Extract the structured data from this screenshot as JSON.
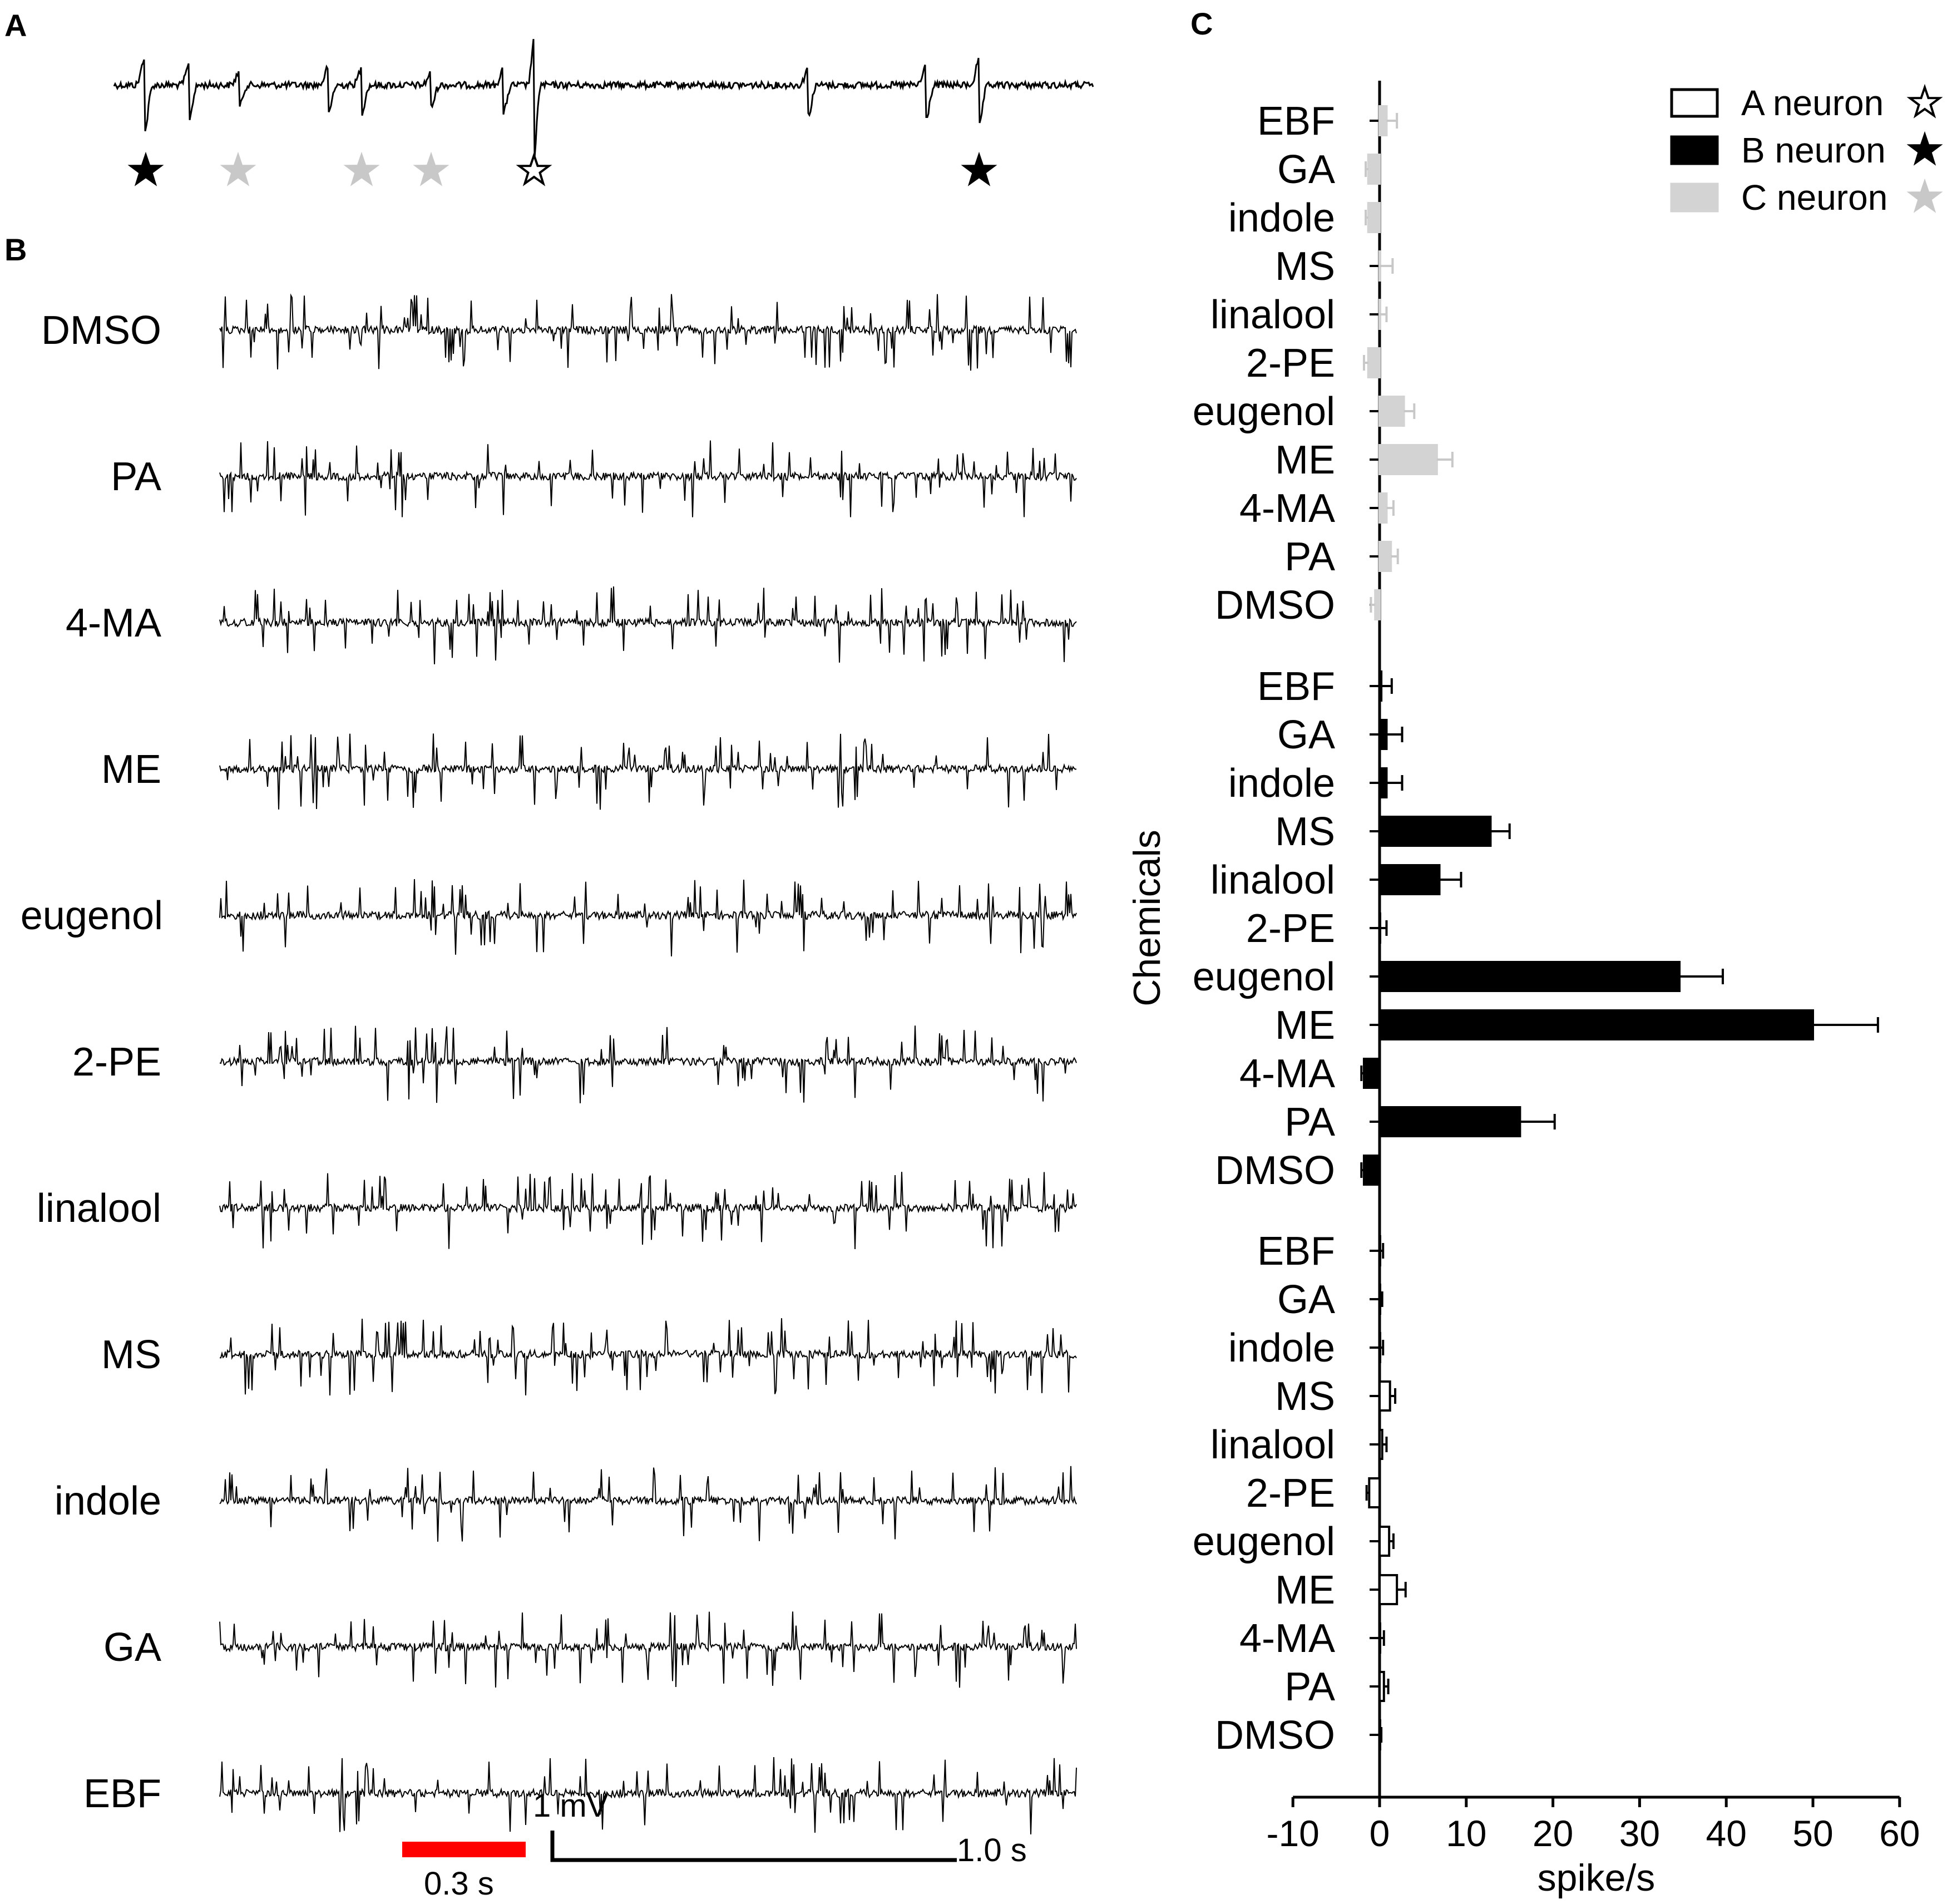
{
  "panels": {
    "a_label": "A",
    "b_label": "B",
    "c_label": "C"
  },
  "panel_a": {
    "star_markers": [
      {
        "fill": "#000000",
        "stroke": "#000000"
      },
      {
        "fill": "#c8c8c8",
        "stroke": "#c8c8c8"
      },
      {
        "fill": "#c8c8c8",
        "stroke": "#c8c8c8"
      },
      {
        "fill": "#c8c8c8",
        "stroke": "#c8c8c8"
      },
      {
        "fill": "#ffffff",
        "stroke": "#000000"
      },
      {
        "fill": "#000000",
        "stroke": "#000000"
      }
    ]
  },
  "panel_b": {
    "traces": [
      "DMSO",
      "PA",
      "4-MA",
      "ME",
      "eugenol",
      "2-PE",
      "linalool",
      "MS",
      "indole",
      "GA",
      "EBF"
    ],
    "scale_red_label": "0.3 s",
    "scale_v_label": "1 mV",
    "scale_h_label": "1.0 s",
    "scale_red_color": "#ff0000"
  },
  "chart_data": {
    "type": "bar",
    "orientation": "horizontal",
    "xlabel": "spike/s",
    "ylabel": "Chemicals",
    "xlim": [
      -10,
      60
    ],
    "xticks": [
      -10,
      0,
      10,
      20,
      30,
      40,
      50,
      60
    ],
    "legend_position": "top-right",
    "categories": [
      "DMSO",
      "PA",
      "4-MA",
      "ME",
      "eugenol",
      "2-PE",
      "linalool",
      "MS",
      "indole",
      "GA",
      "EBF"
    ],
    "series": [
      {
        "name": "A neuron",
        "symbol": "☆",
        "fill": "#ffffff",
        "stroke": "#000000",
        "values": [
          0,
          0.5,
          0,
          2,
          1.1,
          -1.2,
          0.3,
          1.2,
          0,
          0,
          0
        ],
        "errors": [
          0.2,
          0.5,
          0.5,
          1,
          0.5,
          0.3,
          0.5,
          0.6,
          0.4,
          0.3,
          0.4
        ]
      },
      {
        "name": "B neuron",
        "symbol": "★",
        "fill": "#000000",
        "stroke": "#000000",
        "values": [
          -1.8,
          16.2,
          -1.8,
          50,
          34.6,
          0,
          6.9,
          12.8,
          0.8,
          0.8,
          0.2
        ],
        "errors": [
          0.3,
          4,
          0.3,
          7.5,
          5,
          0.8,
          2.5,
          2.2,
          1.8,
          1.8,
          1.2
        ]
      },
      {
        "name": "C neuron",
        "symbol": "★",
        "fill": "#d3d3d3",
        "stroke": "#d3d3d3",
        "symbol_color": "#c8c8c8",
        "values": [
          -0.5,
          1.3,
          0.8,
          6.6,
          2.8,
          -1.3,
          0,
          0,
          -1.3,
          -1.3,
          0.8
        ],
        "errors": [
          0.5,
          0.8,
          0.8,
          1.8,
          1.2,
          0.5,
          0.8,
          1.5,
          0.3,
          0.3,
          1.2
        ]
      }
    ]
  }
}
